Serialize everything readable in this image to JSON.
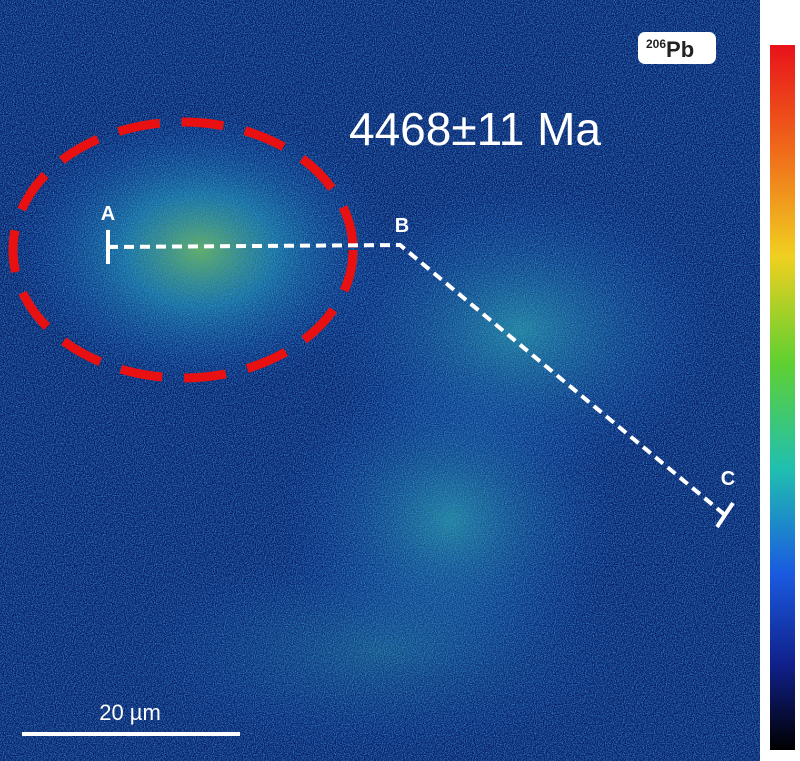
{
  "image": {
    "isotope_label": {
      "mass": "206",
      "element": "Pb"
    },
    "age": "4468±11 Ma",
    "points": {
      "a": "A",
      "b": "B",
      "c": "C"
    },
    "scale_bar": "20 µm"
  }
}
